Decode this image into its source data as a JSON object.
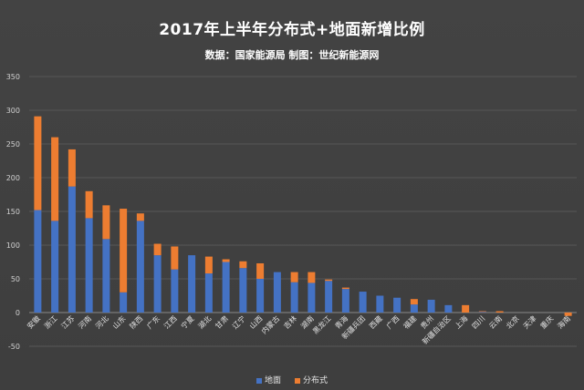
{
  "chart_data": {
    "type": "bar",
    "stacked": true,
    "title": "2017年上半年分布式+地面新增比例",
    "subtitle": "数据：国家能源局 制图：世纪新能源网",
    "ylim": [
      -50,
      350
    ],
    "yticks": [
      -50,
      0,
      50,
      100,
      150,
      200,
      250,
      300,
      350
    ],
    "grid": true,
    "legend_position": "bottom",
    "categories": [
      "安徽",
      "浙江",
      "江苏",
      "河南",
      "河北",
      "山东",
      "陕西",
      "广东",
      "江西",
      "宁夏",
      "湖北",
      "甘肃",
      "辽宁",
      "山西",
      "内蒙古",
      "吉林",
      "湖南",
      "黑龙江",
      "青海",
      "新疆兵团",
      "西藏",
      "广西",
      "福建",
      "贵州",
      "新疆自治区",
      "上海",
      "四川",
      "云南",
      "北京",
      "天津",
      "重庆",
      "海南"
    ],
    "series": [
      {
        "name": "地面",
        "color": "#4472c4",
        "values": [
          152,
          136,
          187,
          140,
          109,
          30,
          136,
          85,
          64,
          85,
          58,
          75,
          66,
          50,
          60,
          45,
          44,
          47,
          35,
          31,
          25,
          22,
          12,
          19,
          11,
          0,
          1,
          0,
          0,
          0,
          0,
          0
        ]
      },
      {
        "name": "分布式",
        "color": "#ed7d31",
        "values": [
          139,
          124,
          55,
          40,
          50,
          124,
          11,
          17,
          34,
          0,
          25,
          4,
          10,
          23,
          0,
          15,
          16,
          2,
          2,
          0,
          0,
          0,
          8,
          0,
          0,
          11,
          1,
          2,
          0,
          0,
          0,
          -5
        ]
      }
    ]
  }
}
